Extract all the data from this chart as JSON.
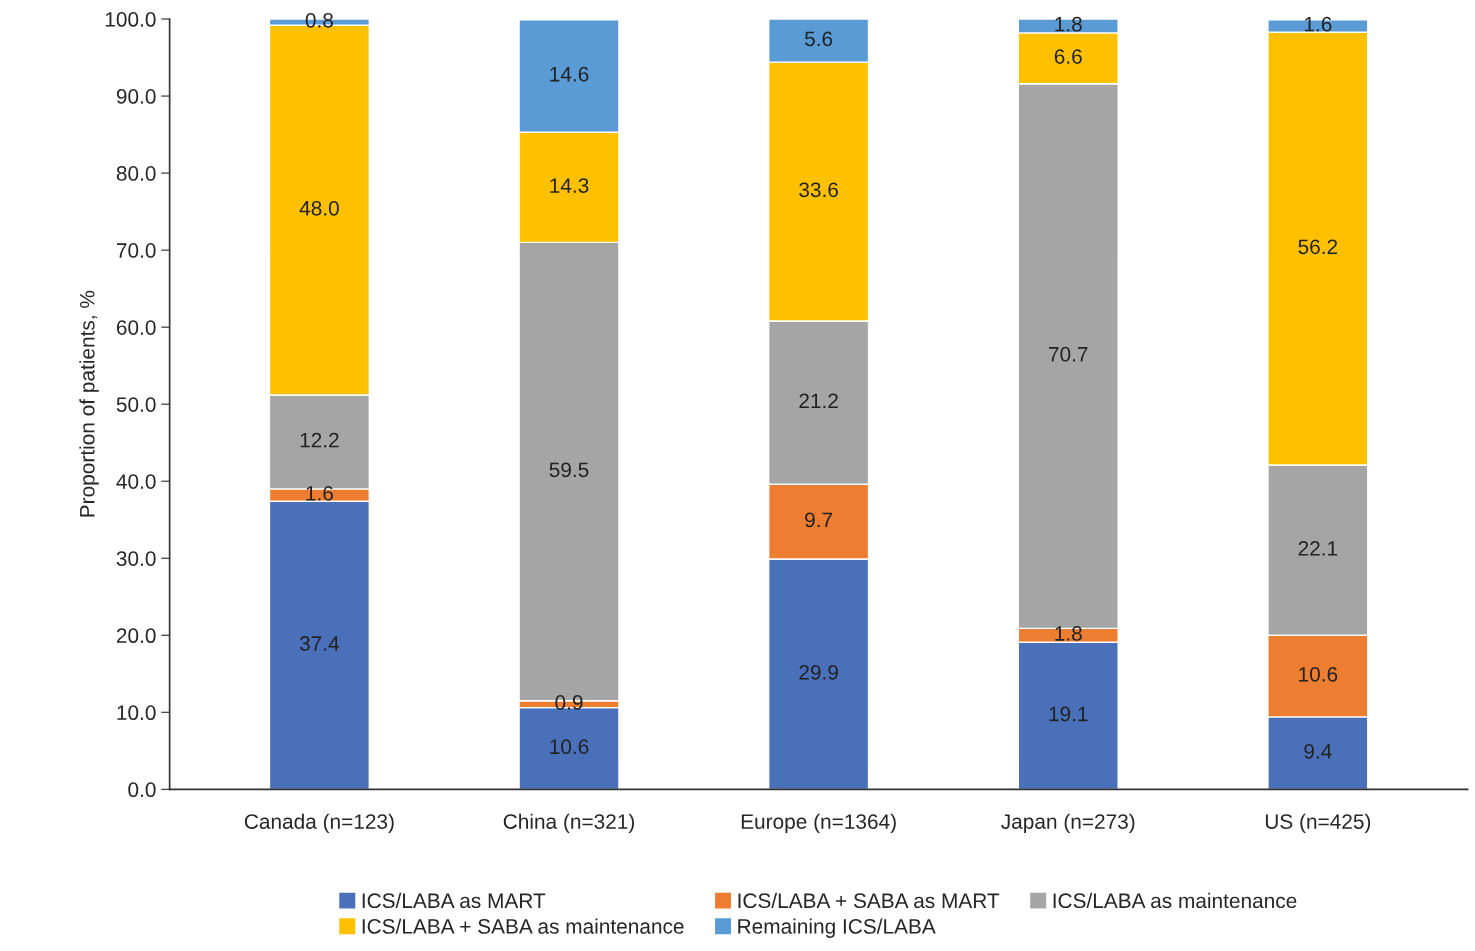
{
  "chart_data": {
    "type": "bar",
    "stacked": true,
    "ylabel": "Proportion of patients, %",
    "categories": [
      "Canada (n=123)",
      "China (n=321)",
      "Europe (n=1364)",
      "Japan (n=273)",
      "US (n=425)"
    ],
    "series": [
      {
        "name": "ICS/LABA as MART",
        "color": "#4a70b9",
        "values": [
          37.4,
          10.6,
          29.9,
          19.1,
          9.4
        ],
        "value_labels": [
          "37.4",
          "10.6",
          "29.9",
          "19.1",
          "9.4"
        ]
      },
      {
        "name": "ICS/LABA + SABA as MART",
        "color": "#ed7d31",
        "values": [
          1.6,
          0.9,
          9.7,
          1.8,
          10.6
        ],
        "value_labels": [
          "1.6",
          "0.9",
          "9.7",
          "1.8",
          "10.6"
        ]
      },
      {
        "name": "ICS/LABA as maintenance",
        "color": "#a5a5a5",
        "values": [
          12.2,
          59.5,
          21.2,
          70.7,
          22.1
        ],
        "value_labels": [
          "12.2",
          "59.5",
          "21.2",
          "70.7",
          "22.1"
        ]
      },
      {
        "name": "ICS/LABA + SABA as maintenance",
        "color": "#ffc000",
        "values": [
          48.0,
          14.3,
          33.6,
          6.6,
          56.2
        ],
        "value_labels": [
          "48.0",
          "14.3",
          "33.6",
          "6.6",
          "56.2"
        ]
      },
      {
        "name": "Remaining ICS/LABA",
        "color": "#5b9bd5",
        "values": [
          0.8,
          14.6,
          5.6,
          1.8,
          1.6
        ],
        "value_labels": [
          "0.8",
          "14.6",
          "5.6",
          "1.8",
          "1.6"
        ]
      }
    ],
    "ylim": [
      0,
      100
    ],
    "yticks": [
      {
        "value": 0,
        "label": "0.0"
      },
      {
        "value": 10,
        "label": "10.0"
      },
      {
        "value": 20,
        "label": "20.0"
      },
      {
        "value": 30,
        "label": "30.0"
      },
      {
        "value": 40,
        "label": "40.0"
      },
      {
        "value": 50,
        "label": "50.0"
      },
      {
        "value": 60,
        "label": "60.0"
      },
      {
        "value": 70,
        "label": "70.0"
      },
      {
        "value": 80,
        "label": "80.0"
      },
      {
        "value": 90,
        "label": "90.0"
      },
      {
        "value": 100,
        "label": "100.0"
      }
    ],
    "grid": false,
    "legend": "bottom"
  }
}
